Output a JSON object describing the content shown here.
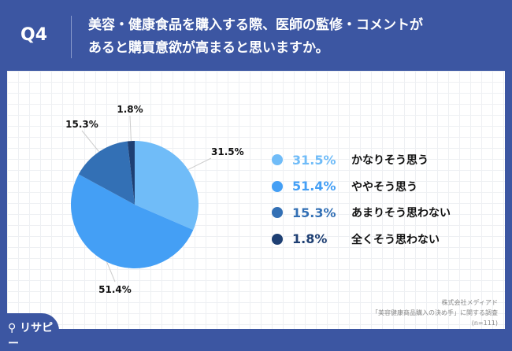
{
  "header": {
    "q": "Q4",
    "title_line1": "美容・健康食品を購入する際、医師の監修・コメントが",
    "title_line2": "あると購買意欲が高まると思いますか。"
  },
  "chart_data": {
    "type": "pie",
    "title": "美容・健康食品を購入する際、医師の監修・コメントがあると購買意欲が高まると思いますか。",
    "categories": [
      "かなりそう思う",
      "ややそう思う",
      "あまりそう思わない",
      "全くそう思わない"
    ],
    "values": [
      31.5,
      51.4,
      15.3,
      1.8
    ],
    "labels": [
      "31.5%",
      "51.4%",
      "15.3%",
      "1.8%"
    ],
    "colors": [
      "#70bcf8",
      "#449ff5",
      "#3370b5",
      "#1e3f73"
    ],
    "legend_placement": "right"
  },
  "source": {
    "company": "株式会社メディアド",
    "survey": "「美容健康商品購入の決め手」に関する調査",
    "n": "(n=111)"
  },
  "logo": "リサピー"
}
